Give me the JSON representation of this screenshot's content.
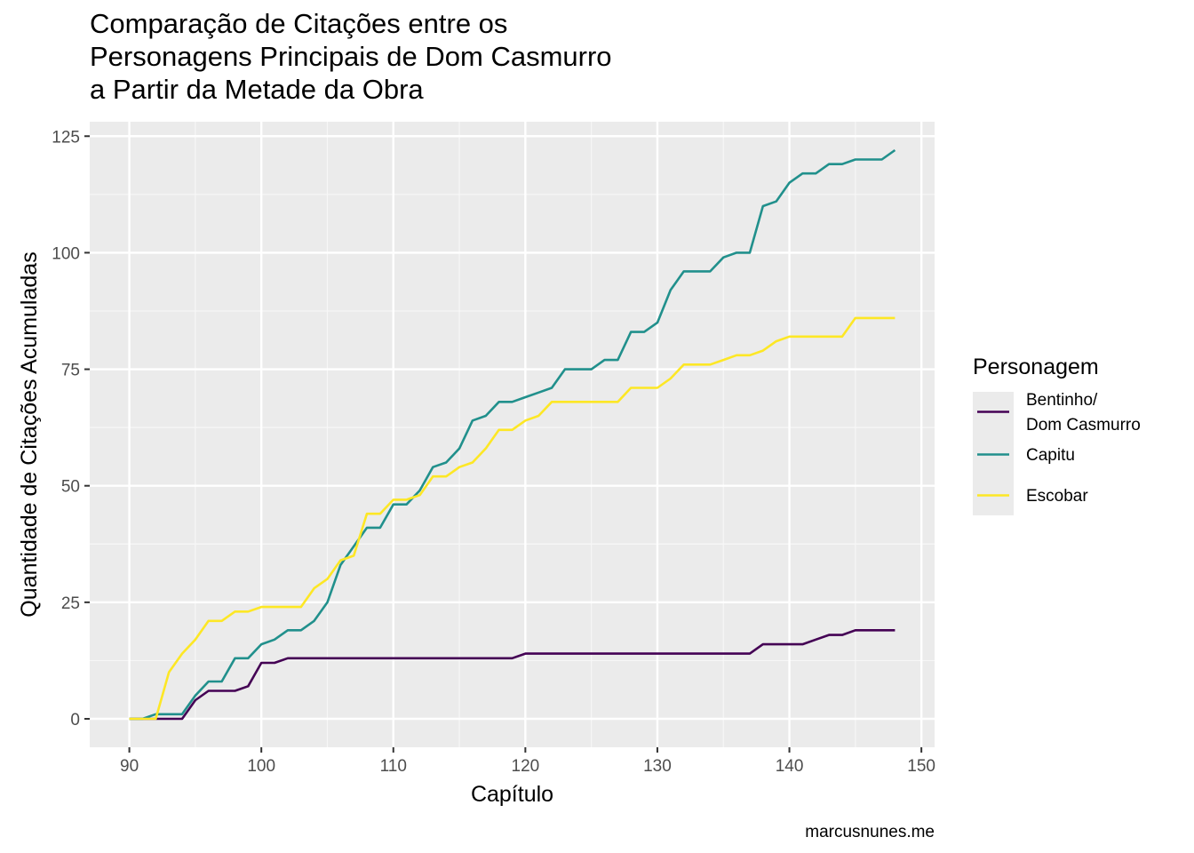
{
  "chart_data": {
    "type": "line",
    "title_lines": [
      "Comparação de Citações entre os",
      "Personagens Principais de Dom Casmurro",
      "a Partir da Metade da Obra"
    ],
    "xlabel": "Capítulo",
    "ylabel": "Quantidade de Citações Acumuladas",
    "caption": "marcusnunes.me",
    "xlim": [
      87,
      151
    ],
    "ylim": [
      -6.1,
      128.1
    ],
    "x_ticks": [
      90,
      100,
      110,
      120,
      130,
      140,
      150
    ],
    "y_ticks": [
      0,
      25,
      50,
      75,
      100,
      125
    ],
    "x_tick_labels": [
      "90",
      "100",
      "110",
      "120",
      "130",
      "140",
      "150"
    ],
    "y_tick_labels": [
      "0",
      "25",
      "50",
      "75",
      "100",
      "125"
    ],
    "grid": true,
    "legend": {
      "title": "Personagem",
      "position": "right",
      "entries": [
        {
          "lines": [
            "Bentinho/",
            "Dom Casmurro"
          ],
          "color": "#440154"
        },
        {
          "lines": [
            "Capitu"
          ],
          "color": "#21908c"
        },
        {
          "lines": [
            "Escobar"
          ],
          "color": "#fde725"
        }
      ]
    },
    "series": [
      {
        "name": "Bentinho/Dom Casmurro",
        "color": "#440154",
        "x": [
          90,
          91,
          92,
          93,
          94,
          95,
          96,
          97,
          98,
          99,
          100,
          101,
          102,
          103,
          104,
          105,
          106,
          107,
          108,
          109,
          110,
          111,
          112,
          113,
          114,
          115,
          116,
          117,
          118,
          119,
          120,
          121,
          122,
          123,
          124,
          125,
          126,
          127,
          128,
          129,
          130,
          131,
          132,
          133,
          134,
          135,
          136,
          137,
          138,
          139,
          140,
          141,
          142,
          143,
          144,
          145,
          146,
          147,
          148
        ],
        "y": [
          0,
          0,
          0,
          0,
          0,
          4,
          6,
          6,
          6,
          7,
          12,
          12,
          13,
          13,
          13,
          13,
          13,
          13,
          13,
          13,
          13,
          13,
          13,
          13,
          13,
          13,
          13,
          13,
          13,
          13,
          14,
          14,
          14,
          14,
          14,
          14,
          14,
          14,
          14,
          14,
          14,
          14,
          14,
          14,
          14,
          14,
          14,
          14,
          16,
          16,
          16,
          16,
          17,
          18,
          18,
          19,
          19,
          19,
          19
        ]
      },
      {
        "name": "Capitu",
        "color": "#21908c",
        "x": [
          90,
          91,
          92,
          93,
          94,
          95,
          96,
          97,
          98,
          99,
          100,
          101,
          102,
          103,
          104,
          105,
          106,
          107,
          108,
          109,
          110,
          111,
          112,
          113,
          114,
          115,
          116,
          117,
          118,
          119,
          120,
          121,
          122,
          123,
          124,
          125,
          126,
          127,
          128,
          129,
          130,
          131,
          132,
          133,
          134,
          135,
          136,
          137,
          138,
          139,
          140,
          141,
          142,
          143,
          144,
          145,
          146,
          147,
          148
        ],
        "y": [
          0,
          0,
          1,
          1,
          1,
          5,
          8,
          8,
          13,
          13,
          16,
          17,
          19,
          19,
          21,
          25,
          33,
          37,
          41,
          41,
          46,
          46,
          49,
          54,
          55,
          58,
          64,
          65,
          68,
          68,
          69,
          70,
          71,
          75,
          75,
          75,
          77,
          77,
          83,
          83,
          85,
          92,
          96,
          96,
          96,
          99,
          100,
          100,
          110,
          111,
          115,
          117,
          117,
          119,
          119,
          120,
          120,
          120,
          122
        ]
      },
      {
        "name": "Escobar",
        "color": "#fde725",
        "x": [
          90,
          91,
          92,
          93,
          94,
          95,
          96,
          97,
          98,
          99,
          100,
          101,
          102,
          103,
          104,
          105,
          106,
          107,
          108,
          109,
          110,
          111,
          112,
          113,
          114,
          115,
          116,
          117,
          118,
          119,
          120,
          121,
          122,
          123,
          124,
          125,
          126,
          127,
          128,
          129,
          130,
          131,
          132,
          133,
          134,
          135,
          136,
          137,
          138,
          139,
          140,
          141,
          142,
          143,
          144,
          145,
          146,
          147,
          148
        ],
        "y": [
          0,
          0,
          0,
          10,
          14,
          17,
          21,
          21,
          23,
          23,
          24,
          24,
          24,
          24,
          28,
          30,
          34,
          35,
          44,
          44,
          47,
          47,
          48,
          52,
          52,
          54,
          55,
          58,
          62,
          62,
          64,
          65,
          68,
          68,
          68,
          68,
          68,
          68,
          71,
          71,
          71,
          73,
          76,
          76,
          76,
          77,
          78,
          78,
          79,
          81,
          82,
          82,
          82,
          82,
          82,
          86,
          86,
          86,
          86
        ]
      }
    ]
  }
}
